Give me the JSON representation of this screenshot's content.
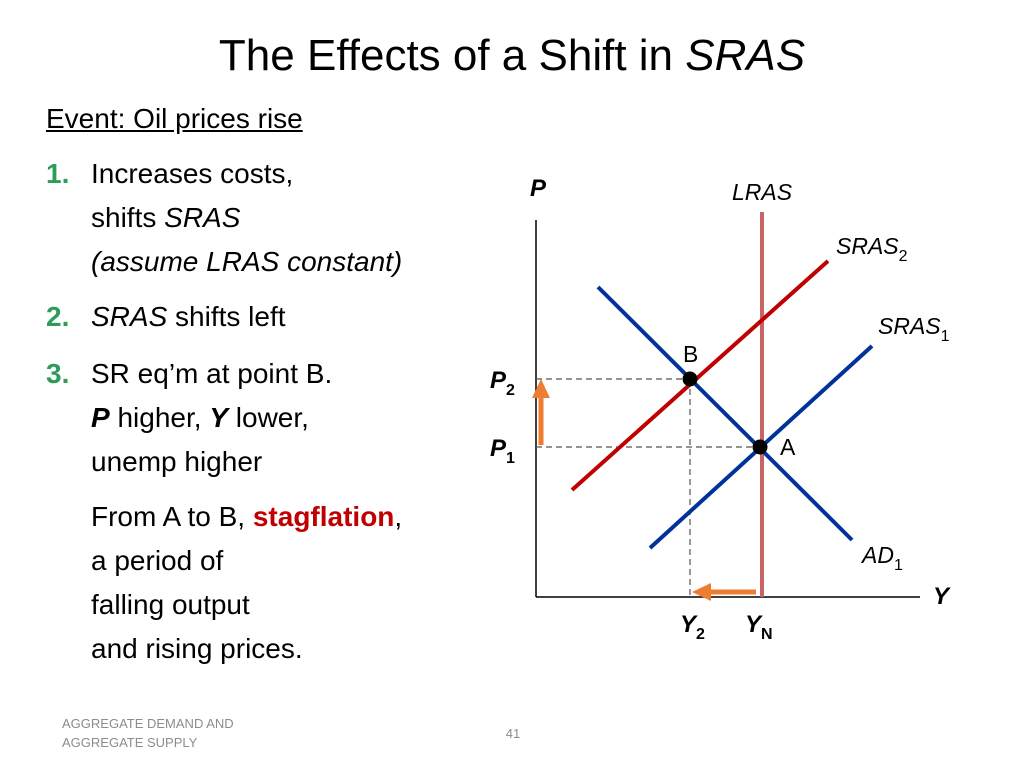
{
  "title": {
    "text": "The Effects of a Shift in",
    "italic_part": "SRAS"
  },
  "event": {
    "text": "Event:  Oil prices rise"
  },
  "items": [
    {
      "number": "1.",
      "line1": "Increases costs,",
      "line2_plain": "shifts ",
      "line2_italic": "SRAS",
      "line3_italic": "(assume LRAS constant)"
    },
    {
      "number": "2.",
      "italic": "SRAS",
      "rest": " shifts left"
    },
    {
      "number": "3.",
      "line1": "SR eq’m at point B.",
      "p_label": "P",
      "p_rest": " higher, ",
      "y_label": "Y",
      "y_rest": "  lower,",
      "line3": "unemp higher"
    }
  ],
  "stagflation": {
    "prefix": "From A to B, ",
    "highlight": "stagflation",
    "suffix": ",",
    "line2": "a period of",
    "line3": "falling output",
    "line4": "and rising prices."
  },
  "diagram": {
    "y_axis_label": "P",
    "x_axis_label": "Y",
    "curves": {
      "lras": "LRAS",
      "sras2_main": "SRAS",
      "sras2_sub": "2",
      "sras1_main": "SRAS",
      "sras1_sub": "1",
      "ad1_main": "AD",
      "ad1_sub": "1"
    },
    "points": {
      "a": "A",
      "b": "B"
    },
    "price_labels": {
      "p2_main": "P",
      "p2_sub": "2",
      "p1_main": "P",
      "p1_sub": "1"
    },
    "output_labels": {
      "y2_main": "Y",
      "y2_sub": "2",
      "yn_main": "Y",
      "yn_sub": "N"
    },
    "colors": {
      "lras": "#C86464",
      "sras2": "#C00000",
      "sras1": "#003399",
      "ad1": "#003399",
      "arrows": "#ED7D31",
      "guides": "#555555"
    }
  },
  "footer": {
    "left_line1": "AGGREGATE DEMAND AND",
    "left_line2": "AGGREGATE SUPPLY",
    "page_number": "41"
  }
}
